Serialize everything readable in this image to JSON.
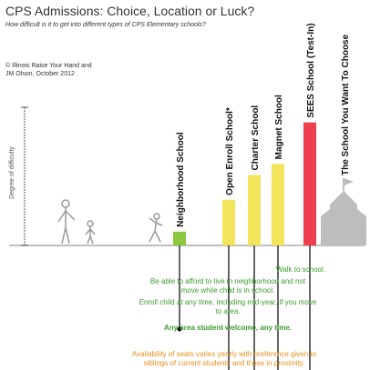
{
  "chart_data": {
    "type": "bar",
    "title": "CPS Admissions: Choice, Location or Luck?",
    "subtitle": "How difficult is it to get into different types of CPS Elementary schools?",
    "credit": "© Illinois Raise Your Hand and JM Olson, October 2012",
    "y_label": "Degree of difficulty",
    "categories": [
      "Neighborhood School",
      "Open Enroll School*",
      "Charter School",
      "Magnet School",
      "SEES School (Test-In)",
      "The School You Want To Choose"
    ],
    "values": [
      10,
      33,
      51,
      59,
      89,
      null
    ],
    "colors": [
      "#8dc63f",
      "#f2e55c",
      "#f2e55c",
      "#f2e55c",
      "#ee3f4f",
      "#bdbdbd"
    ],
    "ylim": [
      0,
      100
    ],
    "notes": [
      "Walk to school.",
      "Be able to afford to live in neighborhood and not move while child is in school.",
      "Enroll child at any time, including mid-year, if you move to area.",
      "Any area student welcome, any time.",
      "Availability of seats varies yearly with preference given to siblings of current students and those in proximity."
    ]
  }
}
